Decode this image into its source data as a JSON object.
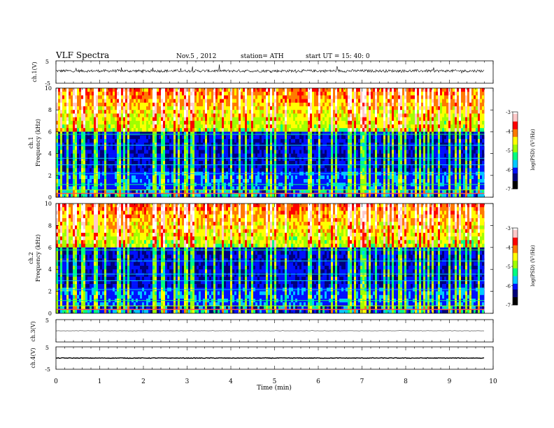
{
  "header": {
    "title": "VLF Spectra",
    "date": "Nov.5 , 2012",
    "station": "station= ATH",
    "start": "start UT =  15: 40: 0"
  },
  "colors": {
    "cmap": [
      "#000000",
      "#00007a",
      "#0010ff",
      "#00c8ff",
      "#00ff80",
      "#a0ff00",
      "#ffff00",
      "#ff7a00",
      "#ff0000",
      "#ffc8c8",
      "#ffffff"
    ]
  },
  "chart_data": [
    {
      "type": "line",
      "ylabel": "ch.1(V)",
      "ylim": [
        -5,
        5
      ],
      "yticks": [
        "5",
        "-5"
      ],
      "baseline": 0.5,
      "noise": 0.6,
      "spike": 3.6
    },
    {
      "type": "heatmap",
      "ylabel": "ch.1",
      "ylabel2": "Frequency (kHz)",
      "ylim": [
        0,
        10
      ],
      "yticks": [
        "0",
        "2",
        "4",
        "6",
        "8",
        "10"
      ],
      "colorbar": {
        "label": "log(PSD) (V²/Hz)",
        "range": [
          -7,
          -3
        ],
        "ticks": [
          "-3",
          "-4",
          "-5",
          "-6",
          "-7"
        ]
      }
    },
    {
      "type": "heatmap",
      "ylabel": "ch.2",
      "ylabel2": "Frequency (kHz)",
      "ylim": [
        0,
        10
      ],
      "yticks": [
        "0",
        "2",
        "4",
        "6",
        "8",
        "10"
      ],
      "colorbar": {
        "label": "log(PSD) (V²/Hz)",
        "range": [
          -7,
          -3
        ],
        "ticks": [
          "-3",
          "-4",
          "-5",
          "-6",
          "-7"
        ]
      }
    },
    {
      "type": "line",
      "ylabel": "ch.3(V)",
      "ylim": [
        -5,
        5
      ],
      "yticks": [
        "5"
      ],
      "baseline": 0,
      "noise": 0.05,
      "spike": 0.3
    },
    {
      "type": "line",
      "ylabel": "ch.4(V)",
      "ylim": [
        -5,
        5
      ],
      "yticks": [
        "5",
        "-5"
      ],
      "baseline": 0,
      "noise": 0.15,
      "spike": 0
    }
  ],
  "x_axis": {
    "label": "Time (min)",
    "range": [
      0,
      10
    ],
    "data_end": 9.8,
    "ticks": [
      "0",
      "1",
      "2",
      "3",
      "4",
      "5",
      "6",
      "7",
      "8",
      "9",
      "10"
    ]
  }
}
